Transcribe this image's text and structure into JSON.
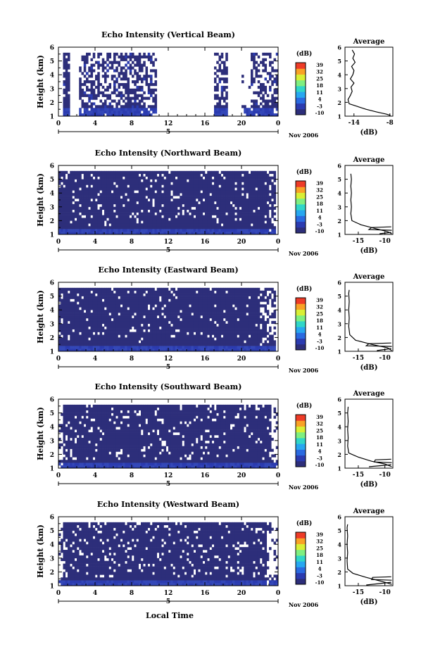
{
  "figure": {
    "xlabel_bottom": "Local Time",
    "date_tick": "5",
    "date_label": "Nov 2006",
    "colorbar_unit": "(dB)",
    "colorbar_ticks": [
      "39",
      "32",
      "25",
      "18",
      "11",
      "4",
      "-3",
      "-10"
    ],
    "colorbar_colors": [
      "#2d2e7a",
      "#2b3bb0",
      "#2a6ae0",
      "#27a7f0",
      "#30d6c8",
      "#7fef80",
      "#d9ef35",
      "#f9a226",
      "#ee3b27"
    ]
  },
  "chart_data": [
    {
      "type": "heatmap",
      "title": "Echo Intensity (Vertical Beam)",
      "ylabel": "Height (km)",
      "x_ticks": [
        "0",
        "4",
        "8",
        "12",
        "16",
        "20",
        "0"
      ],
      "y_ticks": [
        "1",
        "2",
        "3",
        "4",
        "5",
        "6"
      ],
      "xlim": [
        0,
        24
      ],
      "ylim": [
        1,
        6
      ],
      "echo_top_km": 5.6,
      "base_bright_top_km": 1.6,
      "coverage": [
        [
          0.5,
          1.2,
          0.7
        ],
        [
          1.2,
          2.2,
          0.0
        ],
        [
          2.2,
          9.2,
          0.55
        ],
        [
          9.2,
          10.7,
          0.45
        ],
        [
          10.7,
          17.0,
          0.0
        ],
        [
          17.0,
          18.3,
          0.55
        ],
        [
          18.3,
          20.0,
          0.0
        ],
        [
          20.0,
          21.0,
          0.05
        ],
        [
          21.0,
          23.8,
          0.5
        ]
      ],
      "average": {
        "title": "Average",
        "xlabel": "(dB)",
        "x_ticks": [
          "-14",
          "-8"
        ],
        "xlim": [
          -15.5,
          -7.5
        ],
        "y_ticks": [
          "1",
          "2",
          "3",
          "4",
          "5",
          "6"
        ],
        "ylim": [
          1,
          6
        ],
        "profiles": [
          [
            [
              -7.9,
              1.05
            ],
            [
              -8.6,
              1.15
            ],
            [
              -10.2,
              1.3
            ],
            [
              -12.0,
              1.5
            ],
            [
              -14.8,
              1.9
            ],
            [
              -15.0,
              2.2
            ],
            [
              -14.6,
              2.5
            ],
            [
              -14.3,
              2.8
            ],
            [
              -14.5,
              3.1
            ],
            [
              -14.0,
              3.4
            ],
            [
              -14.6,
              3.7
            ],
            [
              -14.2,
              4.0
            ],
            [
              -14.0,
              4.3
            ],
            [
              -14.4,
              4.6
            ],
            [
              -13.8,
              4.9
            ],
            [
              -14.2,
              5.2
            ],
            [
              -13.9,
              5.5
            ],
            [
              -14.3,
              5.8
            ]
          ]
        ]
      }
    },
    {
      "type": "heatmap",
      "title": "Echo Intensity (Northward Beam)",
      "ylabel": "Height (km)",
      "x_ticks": [
        "0",
        "4",
        "8",
        "12",
        "16",
        "20",
        "0"
      ],
      "y_ticks": [
        "1",
        "2",
        "3",
        "4",
        "5",
        "6"
      ],
      "xlim": [
        0,
        24
      ],
      "ylim": [
        1,
        6
      ],
      "echo_top_km": 5.45,
      "base_bright_top_km": 1.45,
      "coverage": [
        [
          0.0,
          23.0,
          0.92
        ],
        [
          23.0,
          23.7,
          0.55
        ]
      ],
      "average": {
        "title": "Average",
        "xlabel": "(dB)",
        "x_ticks": [
          "-15",
          "-10"
        ],
        "xlim": [
          -17.5,
          -8.5
        ],
        "y_ticks": [
          "1",
          "2",
          "3",
          "4",
          "5",
          "6"
        ],
        "ylim": [
          1,
          6
        ],
        "profiles": [
          [
            [
              -8.7,
              1.05
            ],
            [
              -9.5,
              1.2
            ],
            [
              -11.5,
              1.4
            ],
            [
              -14.5,
              1.7
            ],
            [
              -16.2,
              2.0
            ],
            [
              -16.4,
              2.5
            ],
            [
              -16.3,
              3.0
            ],
            [
              -16.4,
              3.5
            ],
            [
              -16.3,
              4.0
            ],
            [
              -16.4,
              4.5
            ],
            [
              -16.3,
              5.0
            ],
            [
              -16.4,
              5.4
            ]
          ],
          [
            [
              -8.7,
              1.3
            ],
            [
              -13.0,
              1.35
            ],
            [
              -12.5,
              1.5
            ],
            [
              -8.8,
              1.55
            ]
          ],
          [
            [
              -11.0,
              1.05
            ],
            [
              -8.8,
              1.15
            ]
          ]
        ]
      }
    },
    {
      "type": "heatmap",
      "title": "Echo Intensity (Eastward Beam)",
      "ylabel": "Height (km)",
      "x_ticks": [
        "0",
        "4",
        "8",
        "12",
        "16",
        "20",
        "0"
      ],
      "y_ticks": [
        "1",
        "2",
        "3",
        "4",
        "5",
        "6"
      ],
      "xlim": [
        0,
        24
      ],
      "ylim": [
        1,
        6
      ],
      "echo_top_km": 5.45,
      "base_bright_top_km": 1.45,
      "coverage": [
        [
          0.0,
          22.0,
          0.93
        ],
        [
          22.0,
          23.6,
          0.6
        ]
      ],
      "average": {
        "title": "Average",
        "xlabel": "(dB)",
        "x_ticks": [
          "-15",
          "-10"
        ],
        "xlim": [
          -17.5,
          -8.5
        ],
        "y_ticks": [
          "1",
          "2",
          "3",
          "4",
          "5",
          "6"
        ],
        "ylim": [
          1,
          6
        ],
        "profiles": [
          [
            [
              -8.7,
              1.05
            ],
            [
              -9.5,
              1.25
            ],
            [
              -12.5,
              1.5
            ],
            [
              -15.5,
              1.8
            ],
            [
              -16.6,
              2.2
            ],
            [
              -16.8,
              2.8
            ],
            [
              -16.7,
              3.4
            ],
            [
              -16.8,
              4.0
            ],
            [
              -16.7,
              4.6
            ],
            [
              -16.8,
              5.2
            ],
            [
              -16.7,
              5.45
            ]
          ],
          [
            [
              -8.7,
              1.35
            ],
            [
              -13.5,
              1.4
            ],
            [
              -13.0,
              1.55
            ],
            [
              -8.8,
              1.6
            ]
          ],
          [
            [
              -11.5,
              1.05
            ],
            [
              -8.8,
              1.2
            ]
          ]
        ]
      }
    },
    {
      "type": "heatmap",
      "title": "Echo Intensity (Southward Beam)",
      "ylabel": "Height (km)",
      "x_ticks": [
        "0",
        "4",
        "8",
        "12",
        "16",
        "20",
        "0"
      ],
      "y_ticks": [
        "1",
        "2",
        "3",
        "4",
        "5",
        "6"
      ],
      "xlim": [
        0,
        24
      ],
      "ylim": [
        1,
        6
      ],
      "echo_top_km": 5.45,
      "base_bright_top_km": 1.45,
      "coverage": [
        [
          0.0,
          0.5,
          0.3
        ],
        [
          0.5,
          23.2,
          0.9
        ],
        [
          23.2,
          24.0,
          0.2
        ]
      ],
      "average": {
        "title": "Average",
        "xlabel": "(dB)",
        "x_ticks": [
          "-15",
          "-10"
        ],
        "xlim": [
          -17.5,
          -8.5
        ],
        "y_ticks": [
          "1",
          "2",
          "3",
          "4",
          "5",
          "6"
        ],
        "ylim": [
          1,
          6
        ],
        "profiles": [
          [
            [
              -8.7,
              1.1
            ],
            [
              -10.0,
              1.3
            ],
            [
              -12.5,
              1.5
            ],
            [
              -15.0,
              1.8
            ],
            [
              -16.8,
              2.1
            ],
            [
              -17.0,
              2.6
            ],
            [
              -16.9,
              3.2
            ],
            [
              -17.0,
              3.8
            ],
            [
              -16.9,
              4.4
            ],
            [
              -17.0,
              5.0
            ],
            [
              -16.9,
              5.45
            ]
          ],
          [
            [
              -8.7,
              1.4
            ],
            [
              -12.0,
              1.45
            ],
            [
              -11.8,
              1.6
            ],
            [
              -8.8,
              1.65
            ]
          ],
          [
            [
              -13.0,
              1.1
            ],
            [
              -8.8,
              1.25
            ]
          ]
        ]
      }
    },
    {
      "type": "heatmap",
      "title": "Echo Intensity (Westward Beam)",
      "ylabel": "Height (km)",
      "x_ticks": [
        "0",
        "4",
        "8",
        "12",
        "16",
        "20",
        "0"
      ],
      "y_ticks": [
        "1",
        "2",
        "3",
        "4",
        "5",
        "6"
      ],
      "xlim": [
        0,
        24
      ],
      "ylim": [
        1,
        6
      ],
      "echo_top_km": 5.45,
      "base_bright_top_km": 1.45,
      "coverage": [
        [
          0.0,
          0.4,
          0.35
        ],
        [
          0.4,
          22.6,
          0.88
        ],
        [
          22.6,
          24.0,
          0.3
        ]
      ],
      "average": {
        "title": "Average",
        "xlabel": "(dB)",
        "x_ticks": [
          "-15",
          "-10"
        ],
        "xlim": [
          -17.5,
          -8.5
        ],
        "y_ticks": [
          "1",
          "2",
          "3",
          "4",
          "5",
          "6"
        ],
        "ylim": [
          1,
          6
        ],
        "profiles": [
          [
            [
              -8.7,
              1.1
            ],
            [
              -10.5,
              1.3
            ],
            [
              -13.5,
              1.6
            ],
            [
              -16.0,
              1.9
            ],
            [
              -17.0,
              2.2
            ],
            [
              -17.1,
              2.8
            ],
            [
              -17.0,
              3.4
            ],
            [
              -17.1,
              4.0
            ],
            [
              -17.0,
              4.6
            ],
            [
              -17.1,
              5.2
            ],
            [
              -17.0,
              5.45
            ]
          ],
          [
            [
              -8.7,
              1.4
            ],
            [
              -12.5,
              1.45
            ],
            [
              -12.3,
              1.6
            ],
            [
              -8.8,
              1.65
            ]
          ],
          [
            [
              -13.5,
              1.05
            ],
            [
              -8.8,
              1.25
            ]
          ]
        ]
      }
    }
  ]
}
